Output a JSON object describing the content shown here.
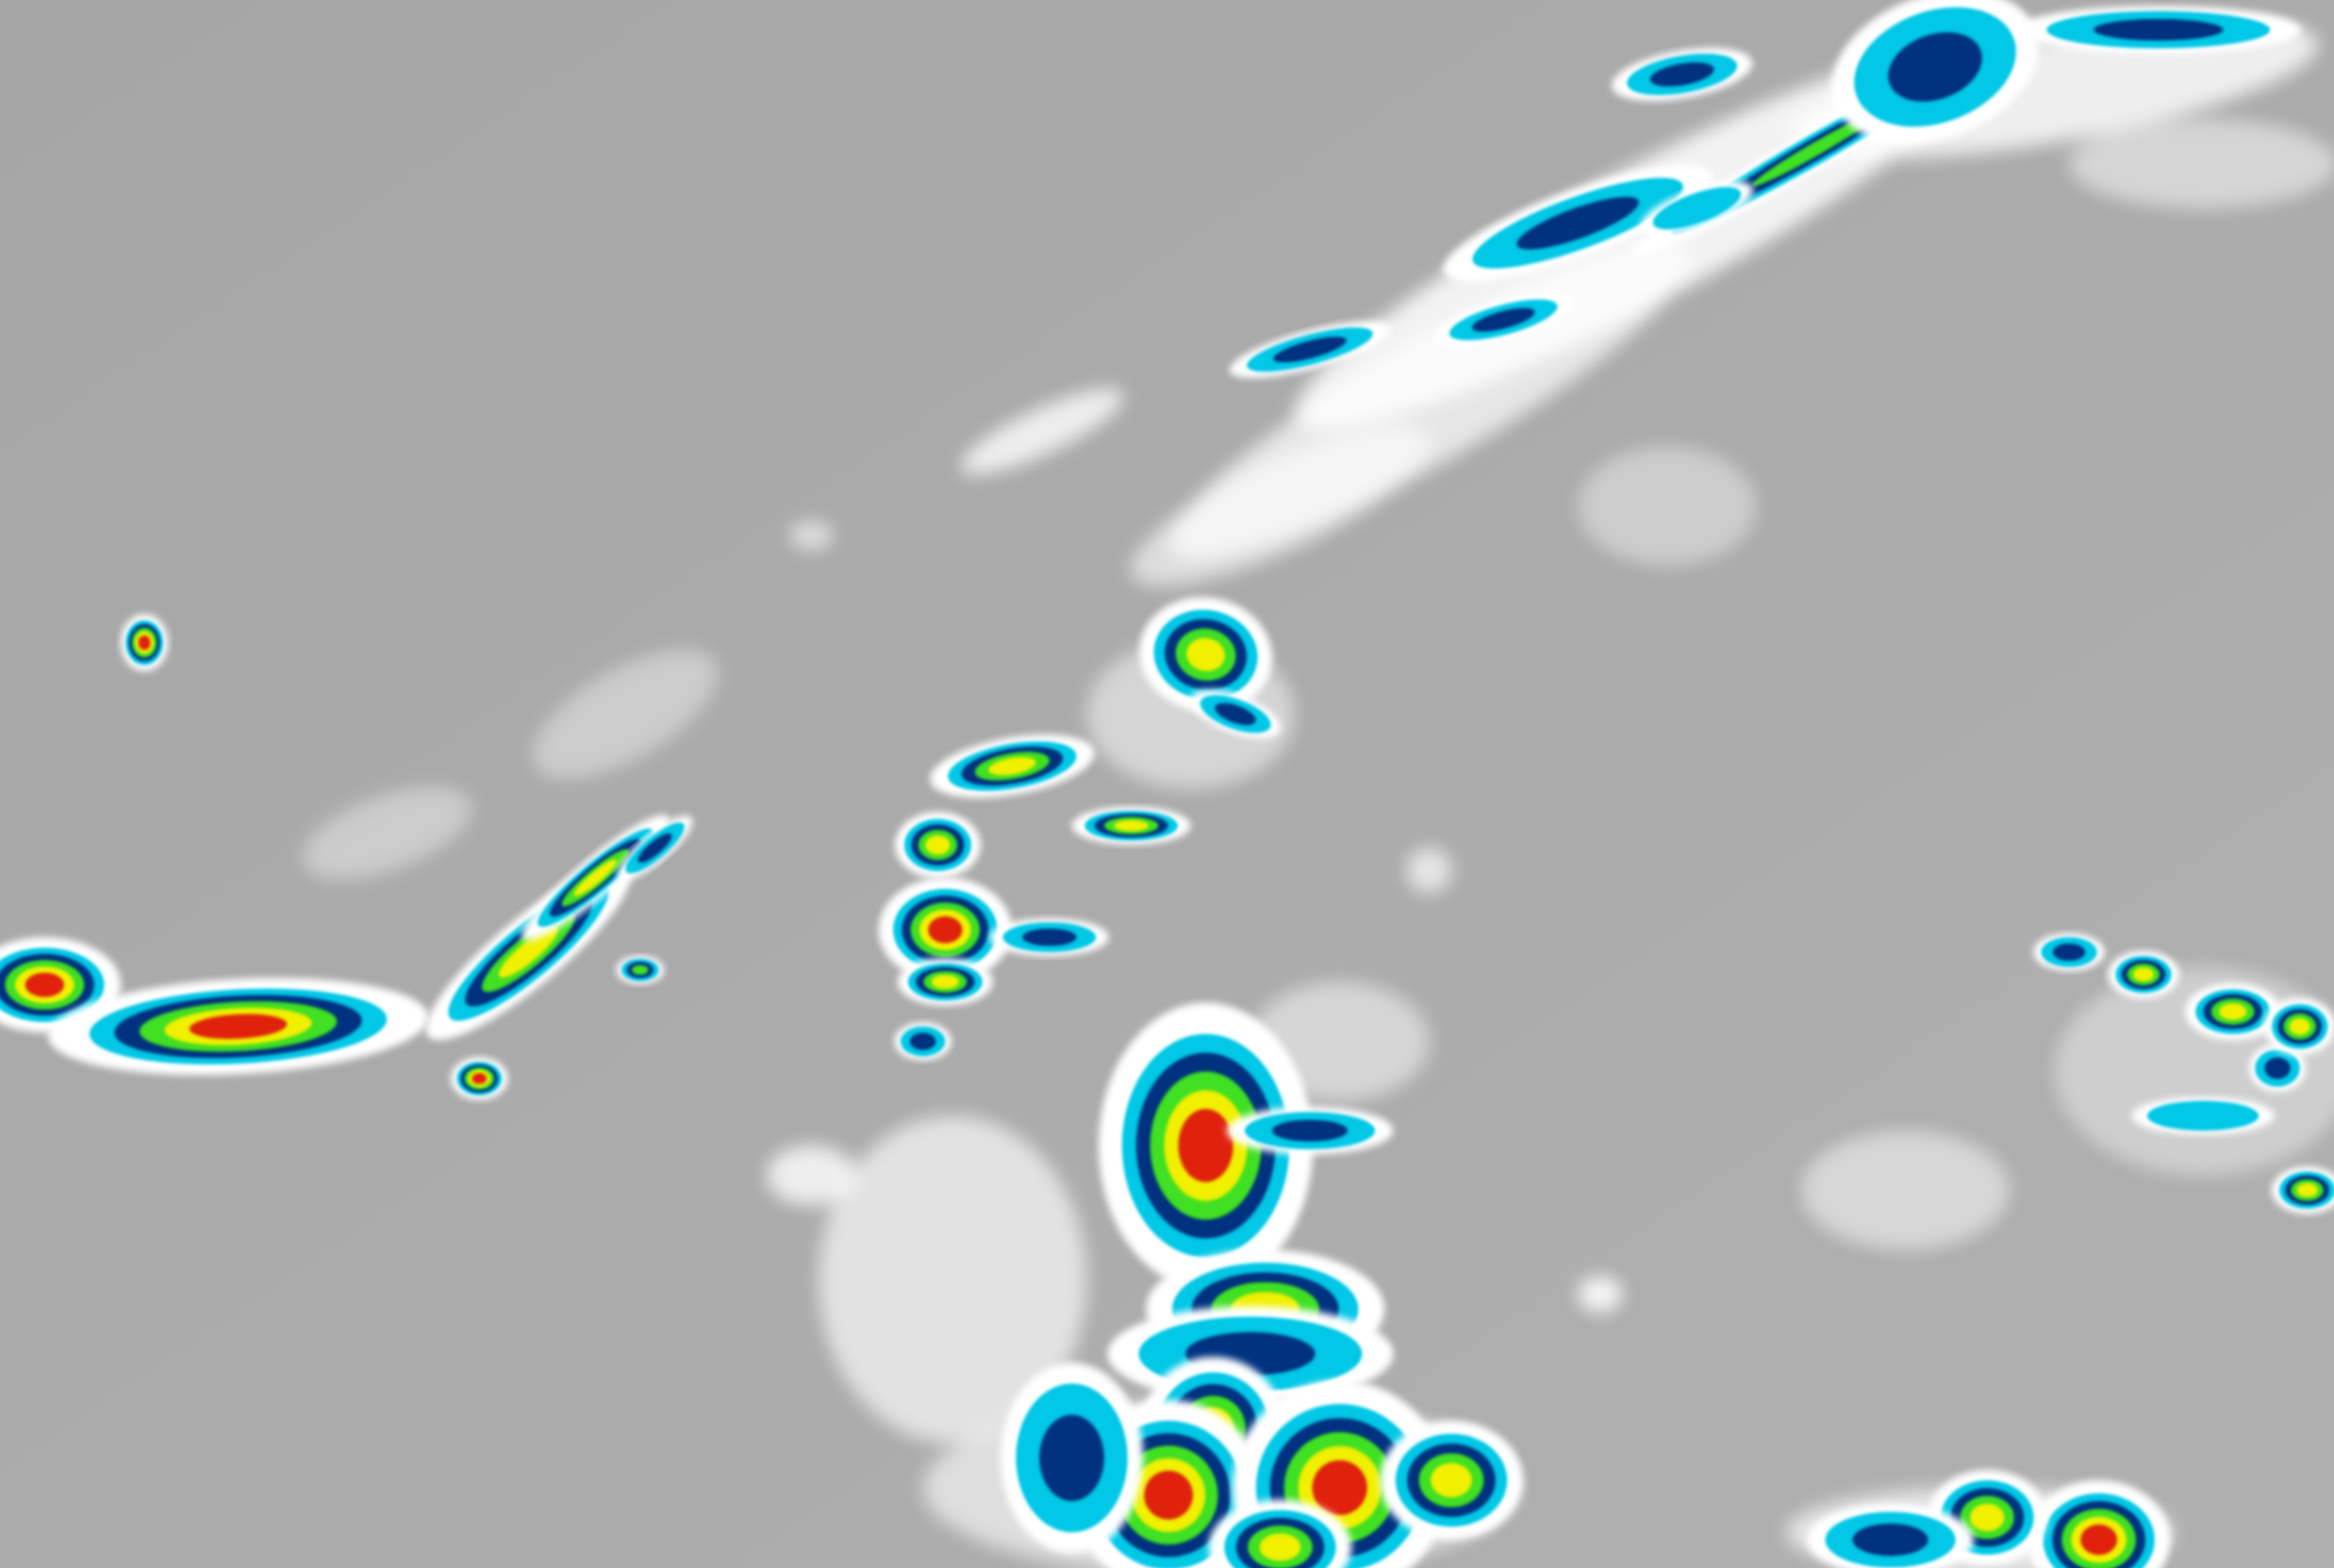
{
  "image": {
    "kind": "infrared satellite imagery",
    "colors": {
      "background": "#a9a9a9",
      "cold_cloud": "#ffffff",
      "level_cyan": "#00c8e6",
      "level_blue": "#003080",
      "level_green": "#40e020",
      "level_yellow": "#f0f000",
      "level_red": "#e02010"
    }
  }
}
